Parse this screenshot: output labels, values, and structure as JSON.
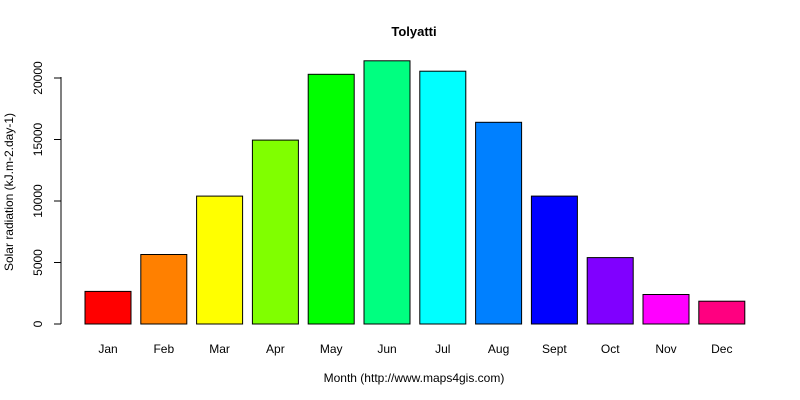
{
  "chart_data": {
    "type": "bar",
    "title": "Tolyatti",
    "xlabel": "Month (http://www.maps4gis.com)",
    "ylabel": "Solar radiation (kJ.m-2.day-1)",
    "categories": [
      "Jan",
      "Feb",
      "Mar",
      "Apr",
      "May",
      "Jun",
      "Jul",
      "Aug",
      "Sept",
      "Oct",
      "Nov",
      "Dec"
    ],
    "values": [
      2650,
      5650,
      10400,
      14950,
      20300,
      21400,
      20550,
      16400,
      10400,
      5400,
      2400,
      1850
    ],
    "colors": [
      "#FF0000",
      "#FF8000",
      "#FFFF00",
      "#80FF00",
      "#00FF00",
      "#00FF80",
      "#00FFFF",
      "#0080FF",
      "#0000FF",
      "#8000FF",
      "#FF00FF",
      "#FF0080"
    ],
    "yticks": [
      0,
      5000,
      10000,
      15000,
      20000
    ],
    "ylim": [
      0,
      21400
    ],
    "grid": false,
    "legend": "none"
  }
}
